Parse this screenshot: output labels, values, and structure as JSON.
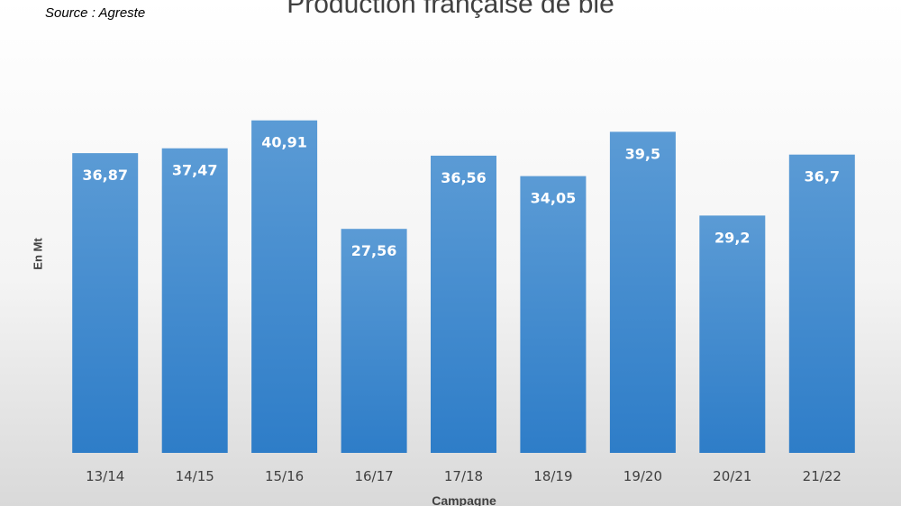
{
  "source_note": "Source : Agreste",
  "chart_data": {
    "type": "bar",
    "title": "Production française de blé",
    "xlabel": "Campagne",
    "ylabel": "En Mt",
    "categories": [
      "13/14",
      "14/15",
      "15/16",
      "16/17",
      "17/18",
      "18/19",
      "19/20",
      "20/21",
      "21/22"
    ],
    "values": [
      36.87,
      37.47,
      40.91,
      27.56,
      36.56,
      34.05,
      39.5,
      29.2,
      36.7
    ],
    "data_labels": [
      "36,87",
      "37,47",
      "40,91",
      "27,56",
      "36,56",
      "34,05",
      "39,5",
      "29,2",
      "36,7"
    ],
    "ylim": [
      0,
      43.2
    ],
    "grid": false,
    "legend": "none",
    "colors": {
      "bar_top": "#5b9bd5",
      "bar_bottom": "#2e7dc8",
      "label": "#ffffff"
    }
  }
}
